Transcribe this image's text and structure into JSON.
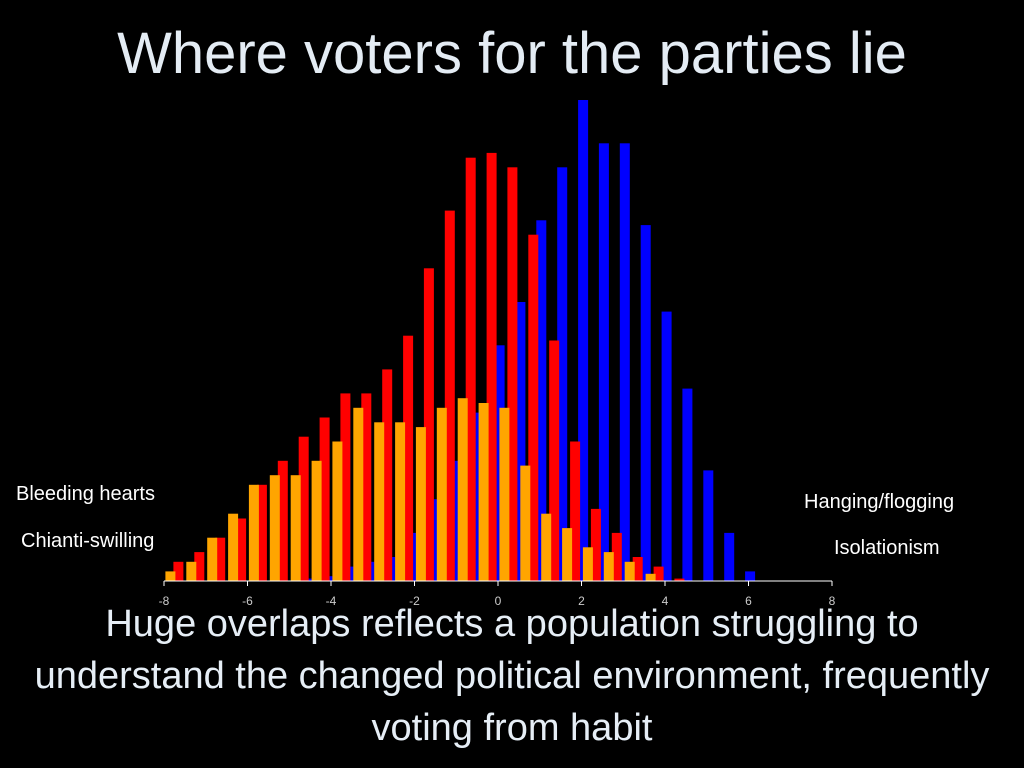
{
  "slide": {
    "title": "Where voters for the parties lie",
    "caption": "Huge overlaps reflects a population struggling to understand the changed political environment, frequently voting from habit"
  },
  "annotations": {
    "left_top": "Bleeding hearts",
    "left_bottom": "Chianti-swilling",
    "right_top": "Hanging/flogging",
    "right_bottom": "Isolationism"
  },
  "colors": {
    "background": "#000000",
    "red": "#ff0000",
    "blue": "#0000ff",
    "orange": "#ffa500"
  },
  "chart_data": {
    "type": "bar",
    "title": "",
    "xlabel": "",
    "ylabel": "",
    "xlim": [
      -8,
      8
    ],
    "ylim": [
      0,
      100
    ],
    "x_ticks": [
      "-8",
      "-6",
      "-4",
      "-2",
      "0",
      "2",
      "4",
      "6",
      "8"
    ],
    "grid": false,
    "legend": "none",
    "x": [
      -7.75,
      -7.25,
      -6.75,
      -6.25,
      -5.75,
      -5.25,
      -4.75,
      -4.25,
      -3.75,
      -3.25,
      -2.75,
      -2.25,
      -1.75,
      -1.25,
      -0.75,
      -0.25,
      0.25,
      0.75,
      1.25,
      1.75,
      2.25,
      2.75,
      3.25,
      3.75,
      4.25,
      4.75,
      5.25,
      5.75
    ],
    "series": [
      {
        "color": "#0000ff",
        "values": [
          0,
          0,
          0,
          0,
          0,
          0,
          0.5,
          1,
          3,
          4,
          5,
          10,
          17,
          25,
          35,
          49,
          58,
          75,
          86,
          100,
          91,
          91,
          74,
          56,
          40,
          23,
          10,
          2
        ]
      },
      {
        "color": "#ff0000",
        "values": [
          4,
          6,
          9,
          13,
          20,
          25,
          30,
          34,
          39,
          39,
          44,
          51,
          65,
          77,
          88,
          89,
          86,
          72,
          50,
          29,
          15,
          10,
          5,
          3,
          0.5,
          0,
          0,
          0
        ]
      },
      {
        "color": "#ffa500",
        "values": [
          2,
          4,
          9,
          14,
          20,
          22,
          22,
          25,
          29,
          36,
          33,
          33,
          32,
          36,
          38,
          37,
          36,
          24,
          14,
          11,
          7,
          6,
          4,
          1.5,
          0,
          0,
          0,
          0
        ]
      }
    ]
  }
}
